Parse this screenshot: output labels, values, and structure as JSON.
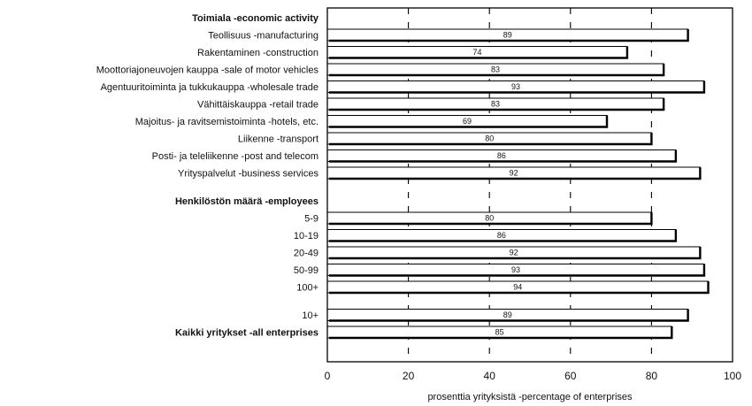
{
  "chart_data": {
    "type": "bar",
    "orientation": "horizontal",
    "xlabel": "prosenttia yrityksistä -percentage of enterprises",
    "ylabel": "",
    "xlim": [
      0,
      100
    ],
    "x_ticks": [
      "0",
      "20",
      "40",
      "60",
      "80",
      "100"
    ],
    "grid": "vertical dashed lines at 20, 40, 60, 80",
    "rows": [
      {
        "kind": "heading",
        "label": "Toimiala -economic activity"
      },
      {
        "kind": "bar",
        "label": "Teollisuus -manufacturing",
        "value": 89,
        "value_label": "89"
      },
      {
        "kind": "bar",
        "label": "Rakentaminen -construction",
        "value": 74,
        "value_label": "74"
      },
      {
        "kind": "bar",
        "label": "Moottoriajoneuvojen kauppa -sale of motor vehicles",
        "value": 83,
        "value_label": "83"
      },
      {
        "kind": "bar",
        "label": "Agentuuritoiminta ja tukkukauppa -wholesale trade",
        "value": 93,
        "value_label": "93"
      },
      {
        "kind": "bar",
        "label": "Vähittäiskauppa -retail trade",
        "value": 83,
        "value_label": "83"
      },
      {
        "kind": "bar",
        "label": "Majoitus- ja ravitsemistoiminta -hotels, etc.",
        "value": 69,
        "value_label": "69"
      },
      {
        "kind": "bar",
        "label": "Liikenne -transport",
        "value": 80,
        "value_label": "80"
      },
      {
        "kind": "bar",
        "label": "Posti- ja teleliikenne -post and telecom",
        "value": 86,
        "value_label": "86"
      },
      {
        "kind": "bar",
        "label": "Yrityspalvelut -business services",
        "value": 92,
        "value_label": "92"
      },
      {
        "kind": "gap"
      },
      {
        "kind": "heading",
        "label": "Henkilöstön määrä -employees"
      },
      {
        "kind": "bar",
        "label": "5-9",
        "value": 80,
        "value_label": "80"
      },
      {
        "kind": "bar",
        "label": "10-19",
        "value": 86,
        "value_label": "86"
      },
      {
        "kind": "bar",
        "label": "20-49",
        "value": 92,
        "value_label": "92"
      },
      {
        "kind": "bar",
        "label": "50-99",
        "value": 93,
        "value_label": "93"
      },
      {
        "kind": "bar",
        "label": "100+",
        "value": 94,
        "value_label": "94"
      },
      {
        "kind": "gap"
      },
      {
        "kind": "bar",
        "label": "10+",
        "value": 89,
        "value_label": "89"
      },
      {
        "kind": "bar_heading",
        "label": "Kaikki yritykset -all enterprises",
        "value": 85,
        "value_label": "85"
      }
    ],
    "colors": {
      "bar_fill": "#ffffff",
      "bar_stroke": "#000000",
      "grid": "#000000"
    }
  }
}
